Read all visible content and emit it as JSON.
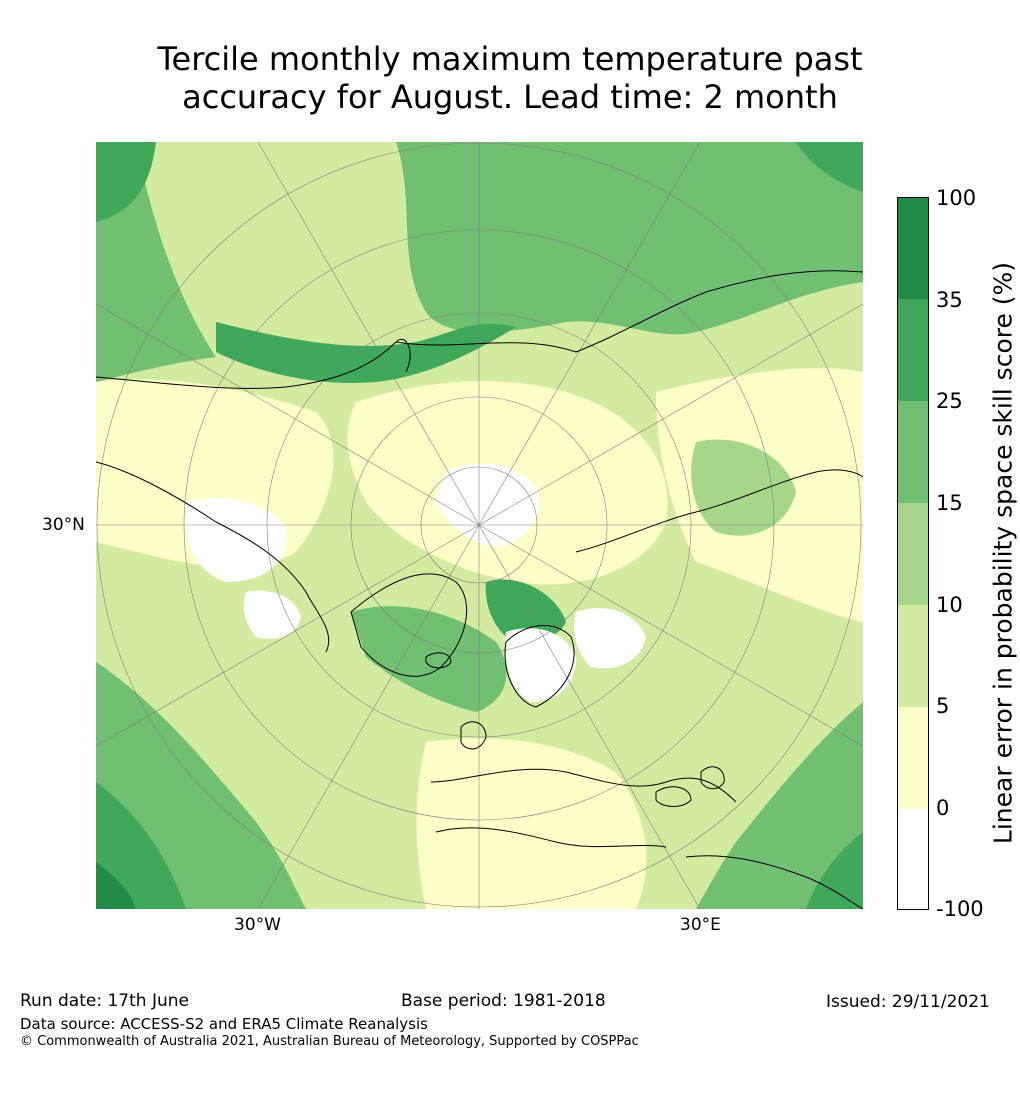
{
  "title": {
    "line1": "Tercile monthly maximum temperature past",
    "line2": "accuracy for August. Lead time: 2 month"
  },
  "map": {
    "projection_labels": {
      "lat": "30°N",
      "lon_west": "30°W",
      "lon_east": "30°E"
    },
    "colors": {
      "ocean_wash": "#d2eba0",
      "coast": "#000000",
      "grid": "#808080"
    }
  },
  "colorbar": {
    "label": "Linear error in probability space skill score (%)",
    "ticks": [
      "100",
      "35",
      "25",
      "15",
      "10",
      "5",
      "0",
      "-100"
    ],
    "bins": [
      {
        "range": "35 to 100",
        "color": "#228a49"
      },
      {
        "range": "25 to 35",
        "color": "#3fa85a"
      },
      {
        "range": "15 to 25",
        "color": "#71bf72"
      },
      {
        "range": "10 to 15",
        "color": "#a6d68a"
      },
      {
        "range": "5 to 10",
        "color": "#d2eba0"
      },
      {
        "range": "0 to 5",
        "color": "#fdfdc8"
      },
      {
        "range": "-100 to 0",
        "color": "#ffffff"
      }
    ]
  },
  "footer": {
    "run_date": "Run date: 17th June",
    "base_period": "Base period: 1981-2018",
    "issued": "Issued: 29/11/2021",
    "data_source": "Data source: ACCESS-S2 and ERA5 Climate Reanalysis",
    "copyright": "© Commonwealth of Australia 2021, Australian Bureau of Meteorology, Supported by COSPPac"
  }
}
